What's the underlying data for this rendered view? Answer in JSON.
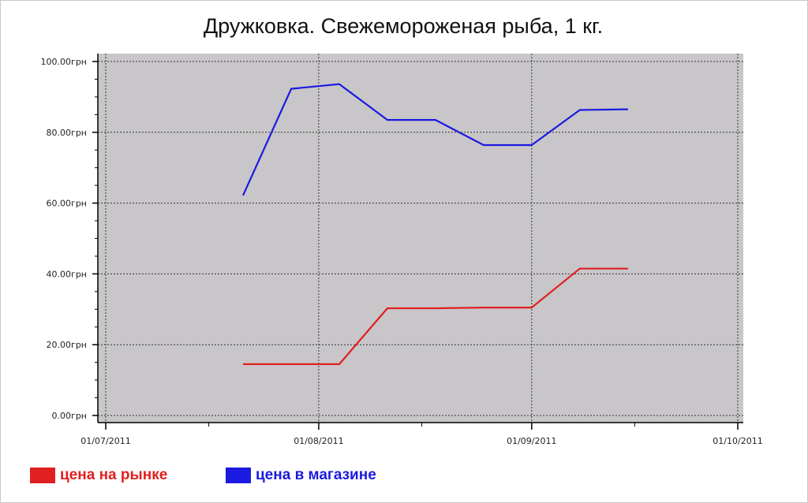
{
  "chart_data": {
    "type": "line",
    "title": "Дружковка. Свежемороженая рыба, 1 кг.",
    "y_ticks": [
      "0.00грн",
      "20.00грн",
      "40.00грн",
      "60.00грн",
      "80.00грн",
      "100.00грн"
    ],
    "x_ticks": [
      "01/07/2011",
      "01/08/2011",
      "01/09/2011",
      "01/10/2011"
    ],
    "ylim": [
      0,
      100
    ],
    "xlim": [
      "2011-07-01",
      "2011-10-01"
    ],
    "grid": true,
    "legend_position": "bottom-left",
    "series": [
      {
        "name": "цена на рынке",
        "color": "#e02020",
        "x": [
          "2011-07-21",
          "2011-07-28",
          "2011-08-04",
          "2011-08-11",
          "2011-08-18",
          "2011-08-25",
          "2011-09-01",
          "2011-09-08",
          "2011-09-15"
        ],
        "y": [
          14.5,
          14.5,
          14.5,
          30.3,
          30.3,
          30.5,
          30.5,
          41.5,
          41.5
        ]
      },
      {
        "name": "цена в магазине",
        "color": "#1a1ae0",
        "x": [
          "2011-07-21",
          "2011-07-28",
          "2011-08-04",
          "2011-08-11",
          "2011-08-18",
          "2011-08-25",
          "2011-09-01",
          "2011-09-08",
          "2011-09-15"
        ],
        "y": [
          62.2,
          92.3,
          93.6,
          83.5,
          83.5,
          76.4,
          76.4,
          86.3,
          86.5
        ]
      }
    ]
  }
}
